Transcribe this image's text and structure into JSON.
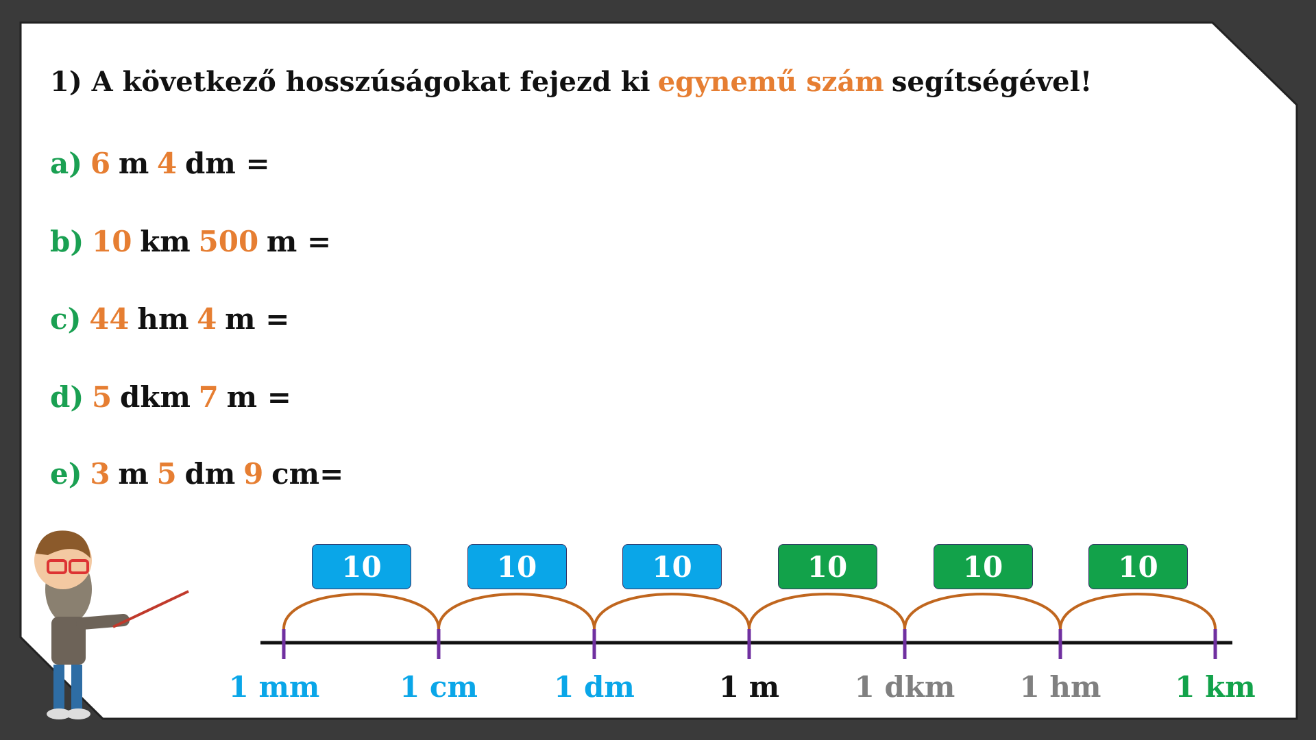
{
  "title": {
    "parts": [
      {
        "text": "1) A következő hosszúságokat fejezd ki",
        "color": "#111111"
      },
      {
        "text": "egynemű szám",
        "color": "#e67e32"
      },
      {
        "text": "segítségével!",
        "color": "#111111"
      }
    ]
  },
  "items": [
    {
      "parts": [
        {
          "text": "a)",
          "color": "#1aa052"
        },
        {
          "text": "6",
          "color": "#e67e32"
        },
        {
          "text": "m",
          "color": "#111111"
        },
        {
          "text": "4",
          "color": "#e67e32"
        },
        {
          "text": "dm =",
          "color": "#111111"
        }
      ]
    },
    {
      "parts": [
        {
          "text": "b)",
          "color": "#1aa052"
        },
        {
          "text": "10",
          "color": "#e67e32"
        },
        {
          "text": "km",
          "color": "#111111"
        },
        {
          "text": "500",
          "color": "#e67e32"
        },
        {
          "text": "m =",
          "color": "#111111"
        }
      ]
    },
    {
      "parts": [
        {
          "text": "c)",
          "color": "#1aa052"
        },
        {
          "text": "44",
          "color": "#e67e32"
        },
        {
          "text": "hm",
          "color": "#111111"
        },
        {
          "text": "4",
          "color": "#e67e32"
        },
        {
          "text": "m =",
          "color": "#111111"
        }
      ]
    },
    {
      "parts": [
        {
          "text": "d)",
          "color": "#1aa052"
        },
        {
          "text": "5",
          "color": "#e67e32"
        },
        {
          "text": "dkm",
          "color": "#111111"
        },
        {
          "text": "7",
          "color": "#e67e32"
        },
        {
          "text": "m =",
          "color": "#111111"
        }
      ]
    },
    {
      "parts": [
        {
          "text": "e)",
          "color": "#1aa052"
        },
        {
          "text": "3",
          "color": "#e67e32"
        },
        {
          "text": "m",
          "color": "#111111"
        },
        {
          "text": "5",
          "color": "#e67e32"
        },
        {
          "text": "dm",
          "color": "#111111"
        },
        {
          "text": "9",
          "color": "#e67e32"
        },
        {
          "text": "cm=",
          "color": "#111111"
        }
      ]
    }
  ],
  "scale": {
    "steps": [
      {
        "text": "10",
        "color": "#0aa6e8"
      },
      {
        "text": "10",
        "color": "#0aa6e8"
      },
      {
        "text": "10",
        "color": "#0aa6e8"
      },
      {
        "text": "10",
        "color": "#12a24a"
      },
      {
        "text": "10",
        "color": "#12a24a"
      },
      {
        "text": "10",
        "color": "#12a24a"
      }
    ],
    "units": [
      {
        "text": "1 mm",
        "color": "#0aa6e8"
      },
      {
        "text": "1 cm",
        "color": "#0aa6e8"
      },
      {
        "text": "1 dm",
        "color": "#0aa6e8"
      },
      {
        "text": "1 m",
        "color": "#111111"
      },
      {
        "text": "1 dkm",
        "color": "#808080"
      },
      {
        "text": "1 hm",
        "color": "#808080"
      },
      {
        "text": "1 km",
        "color": "#12a24a"
      }
    ]
  }
}
